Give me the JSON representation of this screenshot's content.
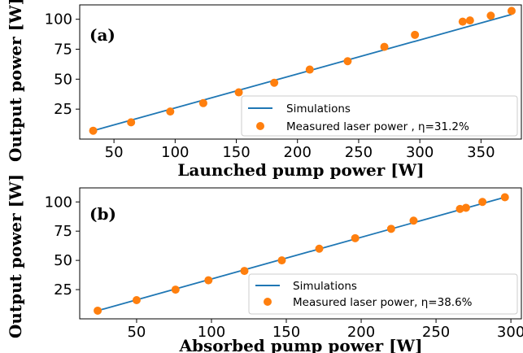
{
  "colors": {
    "simulation_line": "#1f77b4",
    "measured_points": "#ff7f0e"
  },
  "chart_data": [
    {
      "type": "scatter",
      "panel_tag": "(a)",
      "xlabel": "Launched pump power [W]",
      "ylabel": "Output power [W]",
      "xlim": [
        22,
        383
      ],
      "ylim": [
        0,
        112
      ],
      "x_ticks": [
        50,
        100,
        150,
        200,
        250,
        300,
        350
      ],
      "y_ticks": [
        25,
        50,
        75,
        100
      ],
      "legend_position": "lower right",
      "series": [
        {
          "name": "Simulations",
          "kind": "line",
          "x": [
            33,
            375
          ],
          "y": [
            7,
            104
          ]
        },
        {
          "name": "Measured laser power , η=31.2%",
          "kind": "scatter",
          "x": [
            33,
            64,
            96,
            123,
            152,
            181,
            210,
            241,
            271,
            296,
            335,
            341,
            358,
            375
          ],
          "y": [
            7,
            14,
            23,
            30,
            39,
            47,
            58,
            65,
            77,
            87,
            98,
            99,
            103,
            107
          ]
        }
      ]
    },
    {
      "type": "scatter",
      "panel_tag": "(b)",
      "xlabel": "Absorbed pump power [W]",
      "ylabel": "Output power [W]",
      "xlim": [
        12,
        307
      ],
      "ylim": [
        0,
        112
      ],
      "x_ticks": [
        50,
        100,
        150,
        200,
        250,
        300
      ],
      "y_ticks": [
        25,
        50,
        75,
        100
      ],
      "legend_position": "lower right",
      "series": [
        {
          "name": "Simulations",
          "kind": "line",
          "x": [
            24,
            296
          ],
          "y": [
            7,
            104
          ]
        },
        {
          "name": "Measured laser power, η=38.6%",
          "kind": "scatter",
          "x": [
            24,
            50,
            76,
            98,
            122,
            147,
            172,
            196,
            220,
            235,
            266,
            270,
            281,
            296
          ],
          "y": [
            7,
            16,
            25,
            33,
            41,
            50,
            60,
            69,
            77,
            84,
            94,
            95,
            100,
            104
          ]
        }
      ]
    }
  ]
}
